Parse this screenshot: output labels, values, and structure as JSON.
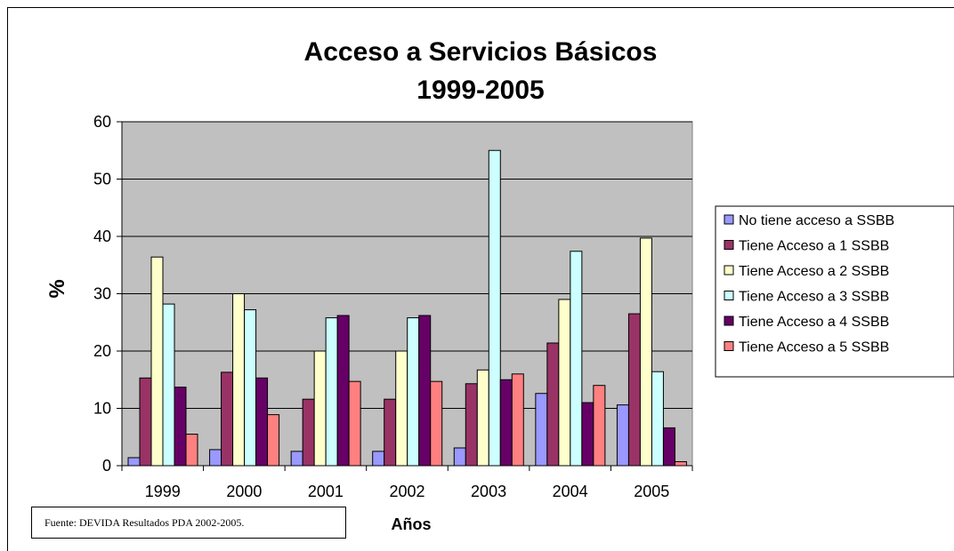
{
  "chart_data": {
    "type": "bar",
    "title": [
      "Acceso a Servicios Básicos",
      "1999-2005"
    ],
    "xlabel": "Años",
    "ylabel": "%",
    "ylim": [
      0,
      60
    ],
    "yticks": [
      0,
      10,
      20,
      30,
      40,
      50,
      60
    ],
    "grid": true,
    "legend_position": "right",
    "categories": [
      "1999",
      "2000",
      "2001",
      "2002",
      "2003",
      "2004",
      "2005"
    ],
    "series": [
      {
        "name": "No tiene acceso a SSBB",
        "color": "#9999ff",
        "values": [
          1.4,
          2.8,
          2.5,
          2.5,
          3.1,
          12.6,
          10.6
        ]
      },
      {
        "name": "Tiene Acceso a 1 SSBB",
        "color": "#993366",
        "values": [
          15.3,
          16.3,
          11.6,
          11.6,
          14.3,
          21.4,
          26.5
        ]
      },
      {
        "name": "Tiene Acceso a 2 SSBB",
        "color": "#ffffcc",
        "values": [
          36.4,
          30.0,
          20.0,
          20.0,
          16.7,
          29.0,
          39.7
        ]
      },
      {
        "name": "Tiene Acceso a 3 SSBB",
        "color": "#ccffff",
        "values": [
          28.2,
          27.2,
          25.8,
          25.8,
          55.0,
          37.4,
          16.4
        ]
      },
      {
        "name": "Tiene Acceso a 4 SSBB",
        "color": "#660066",
        "values": [
          13.7,
          15.3,
          26.2,
          26.2,
          15.0,
          11.0,
          6.6
        ]
      },
      {
        "name": "Tiene Acceso a 5 SSBB",
        "color": "#ff8080",
        "values": [
          5.5,
          8.9,
          14.7,
          14.7,
          16.0,
          14.0,
          0.7
        ]
      }
    ]
  },
  "source_note": "Fuente: DEVIDA  Resultados PDA 2002-2005."
}
